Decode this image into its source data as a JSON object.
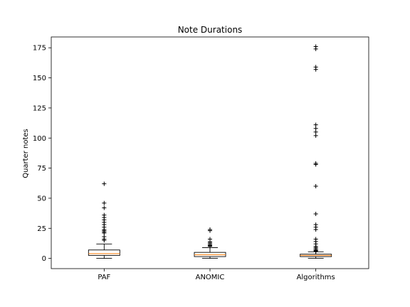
{
  "chart_data": {
    "type": "box",
    "title": "Note Durations",
    "xlabel": "",
    "ylabel": "Quarter notes",
    "ylim": [
      -8.5,
      184
    ],
    "yticks": [
      0,
      25,
      50,
      75,
      100,
      125,
      150,
      175
    ],
    "categories": [
      "PAF",
      "ANOMIC",
      "Algorithms"
    ],
    "boxes": [
      {
        "name": "PAF",
        "whisker_low": 0,
        "q1": 2.5,
        "median": 4,
        "q3": 7,
        "whisker_high": 12,
        "outliers": [
          62,
          46,
          42,
          36,
          34,
          32,
          30,
          28,
          26,
          24,
          23,
          22,
          21,
          18,
          16,
          15
        ]
      },
      {
        "name": "ANOMIC",
        "whisker_low": 0,
        "q1": 1.5,
        "median": 3,
        "q3": 5,
        "whisker_high": 9,
        "outliers": [
          24,
          23,
          16,
          14,
          13,
          12,
          11,
          10.5,
          10
        ]
      },
      {
        "name": "Algorithms",
        "whisker_low": 0,
        "q1": 1.5,
        "median": 2.5,
        "q3": 3.5,
        "whisker_high": 5.5,
        "outliers": [
          176,
          174,
          159,
          157,
          111,
          108,
          105,
          102,
          79,
          78,
          60,
          37,
          28,
          26,
          24,
          16,
          14,
          12,
          10,
          9,
          8,
          7,
          6.5,
          6
        ]
      }
    ],
    "colors": {
      "box": "#000000",
      "median": "#ff7f0e",
      "background": "#ffffff"
    }
  }
}
